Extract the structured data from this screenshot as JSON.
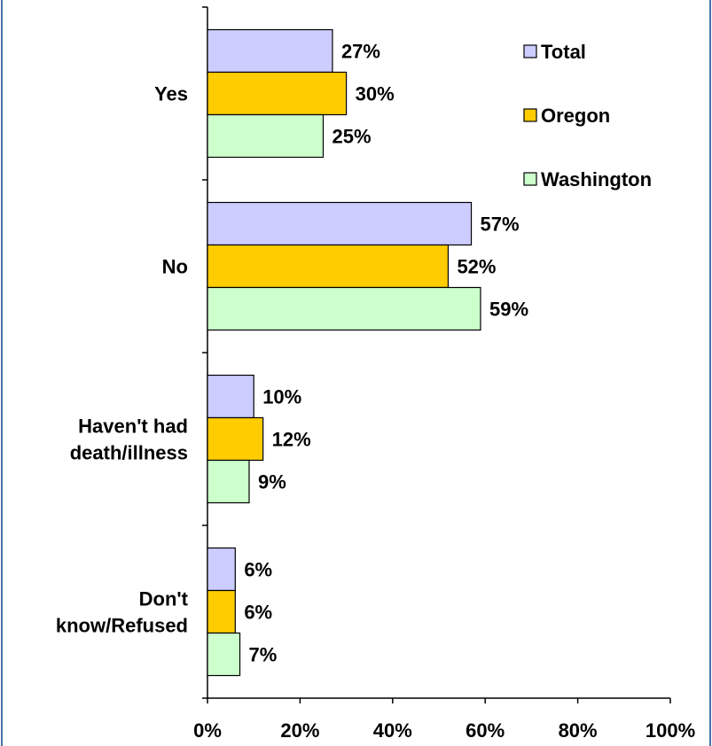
{
  "chart_data": {
    "type": "bar",
    "orientation": "horizontal",
    "categories": [
      [
        "Yes"
      ],
      [
        "No"
      ],
      [
        "Haven't had",
        "death/illness"
      ],
      [
        "Don't",
        "know/Refused"
      ]
    ],
    "series": [
      {
        "name": "Total",
        "color": "#ccccff",
        "values": [
          27,
          57,
          10,
          6
        ]
      },
      {
        "name": "Oregon",
        "color": "#ffcc00",
        "values": [
          30,
          52,
          12,
          6
        ]
      },
      {
        "name": "Washington",
        "color": "#ccffcc",
        "values": [
          25,
          59,
          9,
          7
        ]
      }
    ],
    "data_labels": [
      [
        "27%",
        "57%",
        "10%",
        "6%"
      ],
      [
        "30%",
        "52%",
        "12%",
        "6%"
      ],
      [
        "25%",
        "59%",
        "9%",
        "7%"
      ]
    ],
    "xlim": [
      0,
      100
    ],
    "x_ticks": [
      0,
      20,
      40,
      60,
      80,
      100
    ],
    "x_tick_labels": [
      "0%",
      "20%",
      "40%",
      "60%",
      "80%",
      "100%"
    ],
    "legend_position": "top-right",
    "grid": false
  }
}
